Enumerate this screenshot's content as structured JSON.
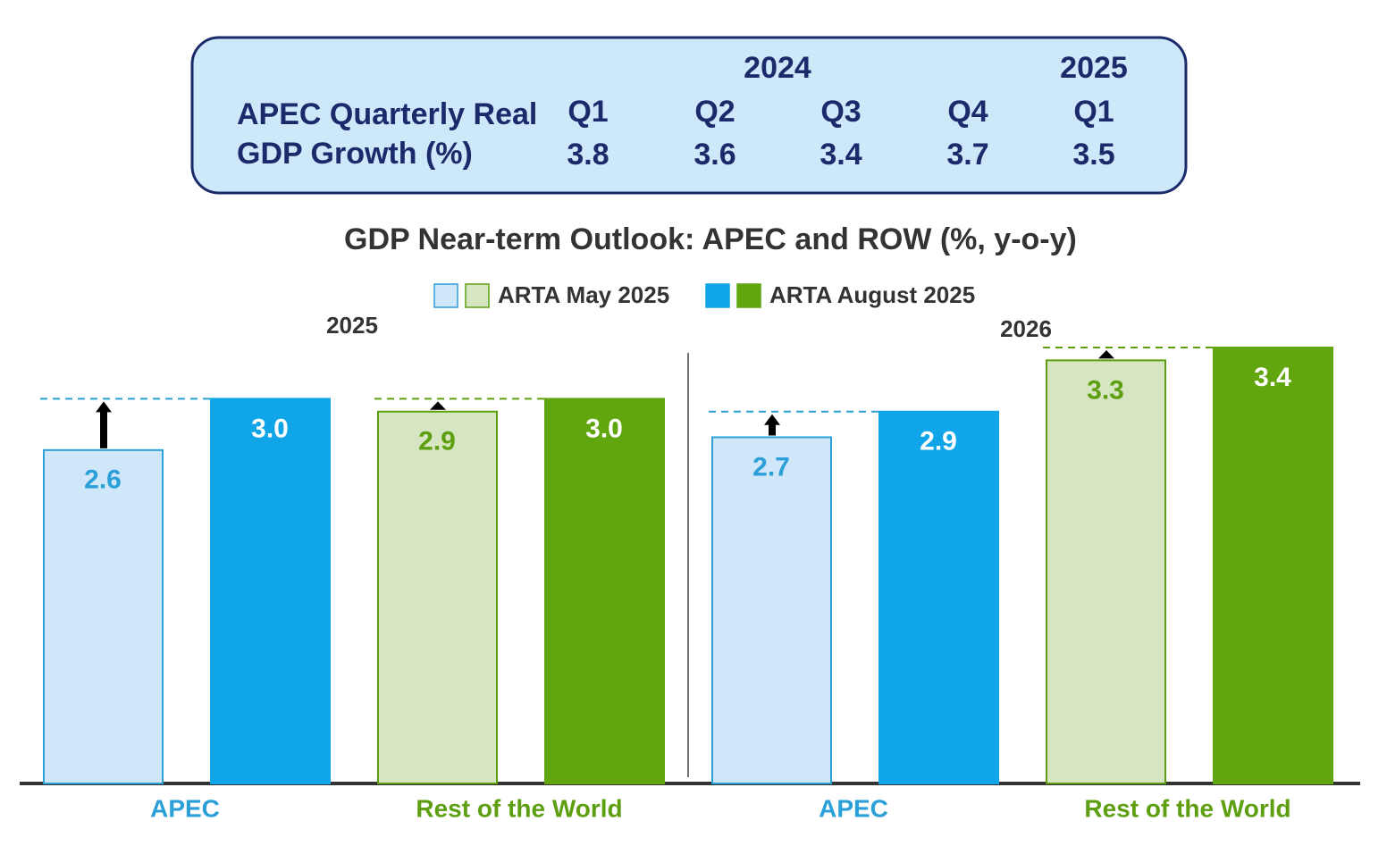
{
  "summary_table": {
    "title_lines": [
      "APEC Quarterly Real",
      "GDP Growth (%)"
    ],
    "years": [
      "2024",
      "2025"
    ],
    "quarters": [
      "Q1",
      "Q2",
      "Q3",
      "Q4",
      "Q1"
    ],
    "values": [
      3.8,
      3.6,
      3.4,
      3.7,
      3.5
    ]
  },
  "chart_data": {
    "type": "bar",
    "title": "GDP Near-term Outlook: APEC and ROW (%, y-o-y)",
    "categories": [
      "APEC",
      "Rest of the World"
    ],
    "category_colors": [
      "#2a9fd8",
      "#5e9f12"
    ],
    "series": [
      {
        "name": "ARTA May 2025",
        "colors": [
          "#cfe7f8",
          "#d6e6c3"
        ]
      },
      {
        "name": "ARTA August 2025",
        "colors": [
          "#10a5e8",
          "#61a60e"
        ]
      }
    ],
    "ylim": [
      0,
      3.4
    ],
    "panels": [
      {
        "title": "2025",
        "series": [
          {
            "values": [
              2.6,
              2.9
            ]
          },
          {
            "values": [
              3.0,
              3.0
            ],
            "value_labels": [
              "3.0",
              "3.0"
            ]
          }
        ]
      },
      {
        "title": "2026",
        "series": [
          {
            "values": [
              2.7,
              3.3
            ]
          },
          {
            "values": [
              2.9,
              3.4
            ]
          }
        ]
      }
    ]
  }
}
